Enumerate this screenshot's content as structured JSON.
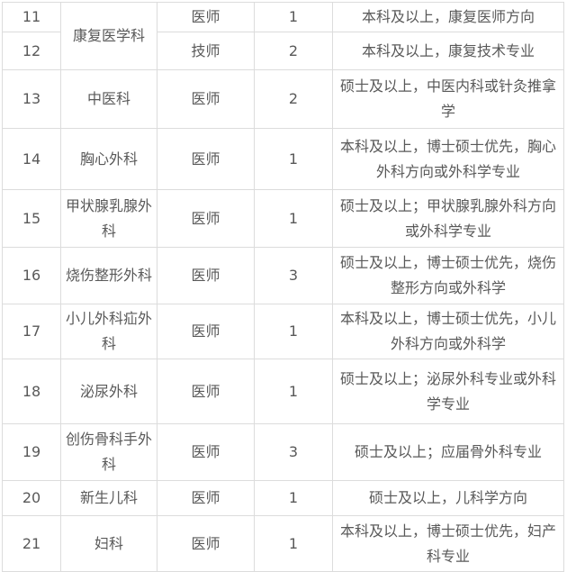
{
  "colors": {
    "text": "#595959",
    "border": "#dcdcdc",
    "background": "#ffffff"
  },
  "table": {
    "rows": [
      {
        "no": "11",
        "department": "康复医学科",
        "position": "医师",
        "count": "1",
        "requirement": "本科及以上，康复医师方向"
      },
      {
        "no": "12",
        "position": "技师",
        "count": "2",
        "requirement": "本科及以上，康复技术专业"
      },
      {
        "no": "13",
        "department": "中医科",
        "position": "医师",
        "count": "2",
        "requirement": "硕士及以上，中医内科或针灸推拿学"
      },
      {
        "no": "14",
        "department": "胸心外科",
        "position": "医师",
        "count": "1",
        "requirement": "本科及以上，博士硕士优先，胸心外科方向或外科学专业"
      },
      {
        "no": "15",
        "department": "甲状腺乳腺外科",
        "position": "医师",
        "count": "1",
        "requirement": "硕士及以上；甲状腺乳腺外科方向或外科学专业"
      },
      {
        "no": "16",
        "department": "烧伤整形外科",
        "position": "医师",
        "count": "3",
        "requirement": "硕士及以上，博士硕士优先，烧伤整形方向或外科学"
      },
      {
        "no": "17",
        "department": "小儿外科疝外科",
        "position": "医师",
        "count": "1",
        "requirement": "本科及以上，博士硕士优先，小儿外科方向或外科学"
      },
      {
        "no": "18",
        "department": "泌尿外科",
        "position": "医师",
        "count": "1",
        "requirement": "硕士及以上；泌尿外科专业或外科学专业"
      },
      {
        "no": "19",
        "department": "创伤骨科手外科",
        "position": "医师",
        "count": "3",
        "requirement": "硕士及以上；应届骨外科专业"
      },
      {
        "no": "20",
        "department": "新生儿科",
        "position": "医师",
        "count": "1",
        "requirement": "硕士及以上，儿科学方向"
      },
      {
        "no": "21",
        "department": "妇科",
        "position": "医师",
        "count": "1",
        "requirement": "本科及以上，博士硕士优先，妇产科专业"
      }
    ]
  }
}
